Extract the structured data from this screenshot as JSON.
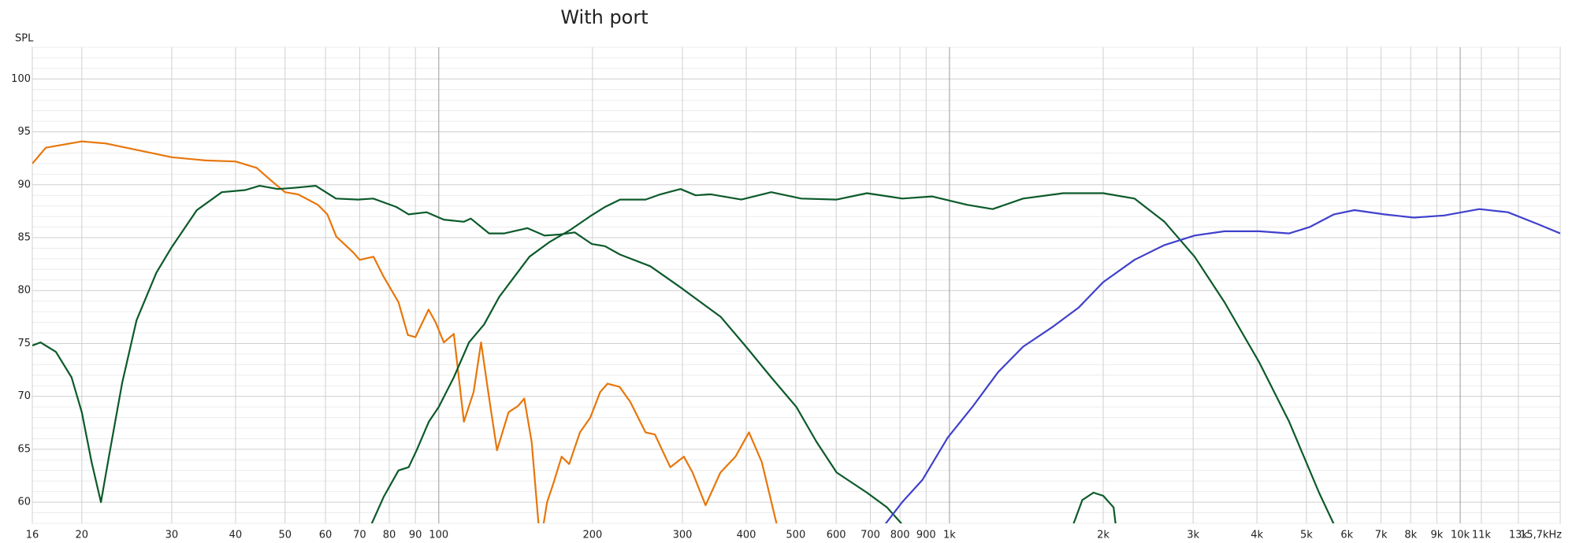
{
  "chart_data": {
    "type": "line",
    "title": "With port",
    "y_label": "SPL",
    "xscale": "log",
    "xlim": [
      16,
      15700
    ],
    "ylim": [
      58,
      103
    ],
    "xticks": [
      16,
      20,
      30,
      40,
      50,
      60,
      70,
      80,
      90,
      100,
      200,
      300,
      400,
      500,
      600,
      700,
      800,
      900,
      {
        "value": 1000,
        "label": "1k"
      },
      {
        "value": 2000,
        "label": "2k"
      },
      {
        "value": 3000,
        "label": "3k"
      },
      {
        "value": 4000,
        "label": "4k"
      },
      {
        "value": 5000,
        "label": "5k"
      },
      {
        "value": 6000,
        "label": "6k"
      },
      {
        "value": 7000,
        "label": "7k"
      },
      {
        "value": 8000,
        "label": "8k"
      },
      {
        "value": 9000,
        "label": "9k"
      },
      {
        "value": 10000,
        "label": "10k"
      },
      {
        "value": 11000,
        "label": "11k"
      },
      {
        "value": 13000,
        "label": "13k"
      },
      {
        "value": 15700,
        "label": "15,7kHz"
      }
    ],
    "yticks": [
      60,
      65,
      70,
      75,
      80,
      85,
      90,
      95,
      100
    ],
    "yminorticks": [
      58,
      59,
      61,
      62,
      63,
      64,
      66,
      67,
      68,
      69,
      71,
      72,
      73,
      74,
      76,
      77,
      78,
      79,
      81,
      82,
      83,
      84,
      86,
      87,
      88,
      89,
      91,
      92,
      93,
      94,
      96,
      97,
      98,
      99,
      101,
      102,
      103
    ],
    "grid": true,
    "series": [
      {
        "color": "#e8760a",
        "x": [
          16,
          17,
          20,
          22.3,
          25.6,
          30,
          35,
          40,
          44,
          47.2,
          50,
          53,
          58,
          60.5,
          63,
          68,
          70,
          74.5,
          78,
          83.4,
          87,
          90,
          95.5,
          98.6,
          102.3,
          107,
          112,
          117,
          121,
          125,
          130,
          137,
          143,
          147,
          152,
          158,
          163,
          168,
          174,
          180,
          189,
          198,
          207,
          214,
          226,
          237,
          254,
          265,
          284,
          302,
          314,
          333,
          356,
          381,
          405,
          429,
          459
        ],
        "values": [
          92,
          93.5,
          94.1,
          93.9,
          93.3,
          92.6,
          92.3,
          92.2,
          91.6,
          90.3,
          89.3,
          89.1,
          88.1,
          87.2,
          85.1,
          83.6,
          82.9,
          83.2,
          81.3,
          78.9,
          75.8,
          75.6,
          78.2,
          77,
          75.1,
          75.9,
          67.6,
          70.4,
          75.1,
          70.4,
          64.9,
          68.5,
          69.1,
          69.8,
          65.7,
          56,
          60,
          61.9,
          64.3,
          63.6,
          66.6,
          68,
          70.4,
          71.2,
          70.9,
          69.5,
          66.6,
          66.4,
          63.3,
          64.3,
          62.8,
          59.7,
          62.8,
          64.3,
          66.6,
          63.8,
          57.9
        ]
      },
      {
        "color": "#0b5a2a",
        "x": [
          16,
          16.6,
          17.8,
          19.1,
          20,
          20.9,
          21.8,
          22.6,
          24,
          25.6,
          28,
          30,
          33.6,
          37.6,
          41.8,
          44.6,
          48.4,
          51.8,
          57.4,
          62.9,
          69.5,
          74.4,
          82.6,
          87.3,
          94.7,
          102.3,
          112,
          115.6,
          125.5,
          134.4,
          149.1,
          161,
          172.4,
          184.6,
          199.5,
          211.5,
          226.5,
          259.6,
          297.4,
          325.7,
          356.7,
          399.6,
          447.6,
          501.4,
          549.1,
          601.4,
          689.2,
          754.7,
          807.9
        ],
        "values": [
          74.8,
          75.1,
          74.2,
          71.8,
          68.5,
          63.8,
          60,
          64.3,
          71.3,
          77.2,
          81.7,
          84.1,
          87.6,
          89.3,
          89.5,
          89.9,
          89.6,
          89.7,
          89.9,
          88.7,
          88.6,
          88.7,
          87.9,
          87.2,
          87.4,
          86.7,
          86.5,
          86.8,
          85.4,
          85.4,
          85.9,
          85.2,
          85.3,
          85.5,
          84.4,
          84.2,
          83.4,
          82.3,
          80.3,
          78.9,
          77.5,
          74.7,
          71.8,
          69,
          65.7,
          62.8,
          60.9,
          59.5,
          57.9
        ]
      },
      {
        "color": "#0b5a2a",
        "x": [
          73.8,
          78,
          83.4,
          87.3,
          90.5,
          95.6,
          100,
          107,
          114.6,
          122.7,
          131.3,
          140.6,
          150.5,
          164.9,
          180.5,
          197.6,
          211.5,
          226.5,
          254.1,
          271.7,
          297.4,
          318.4,
          340.8,
          391.3,
          447.6,
          512.7,
          601.4,
          689.2,
          807.9,
          924.2,
          1084,
          1215,
          1394,
          1670,
          2000,
          2303,
          2636,
          3020,
          3455,
          4042,
          4625,
          5292,
          5660
        ],
        "values": [
          57.9,
          60.5,
          63,
          63.3,
          64.9,
          67.6,
          69,
          71.8,
          75.1,
          76.8,
          79.4,
          81.3,
          83.2,
          84.6,
          85.7,
          87,
          87.9,
          88.6,
          88.6,
          89.1,
          89.6,
          89,
          89.1,
          88.6,
          89.3,
          88.7,
          88.6,
          89.2,
          88.7,
          88.9,
          88.1,
          87.7,
          88.7,
          89.2,
          89.2,
          88.7,
          86.5,
          83.2,
          78.9,
          73.2,
          67.6,
          60.9,
          57.9
        ]
      },
      {
        "color": "#0b5a2a",
        "x": [
          1748,
          1820,
          1914,
          2000,
          2096,
          2115
        ],
        "values": [
          57.9,
          60.2,
          60.9,
          60.6,
          59.5,
          57.9
        ]
      },
      {
        "color": "#4040cc",
        "x": [
          748,
          808,
          885,
          992,
          1109,
          1246,
          1394,
          1596,
          1791,
          2000,
          2303,
          2636,
          3020,
          3455,
          4042,
          4625,
          5070,
          5660,
          6210,
          7100,
          8120,
          9300,
          10900,
          12400,
          14160,
          15700
        ],
        "values": [
          57.9,
          60,
          62.1,
          66.1,
          69,
          72.3,
          74.7,
          76.6,
          78.4,
          80.8,
          82.9,
          84.3,
          85.2,
          85.6,
          85.6,
          85.4,
          86,
          87.2,
          87.6,
          87.2,
          86.9,
          87.1,
          87.7,
          87.4,
          86.3,
          85.4
        ]
      }
    ]
  }
}
